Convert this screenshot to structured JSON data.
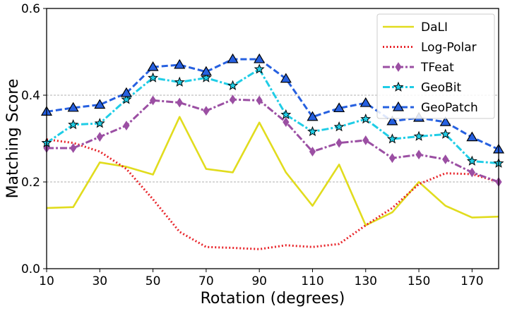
{
  "chart_data": {
    "type": "line",
    "title": "",
    "xlabel": "Rotation (degrees)",
    "ylabel": "Matching Score",
    "xlim": [
      10,
      180
    ],
    "ylim": [
      0.0,
      0.6
    ],
    "grid": "horizontal-dashed",
    "legend_position": "top-right",
    "x": [
      10,
      20,
      30,
      40,
      50,
      60,
      70,
      80,
      90,
      100,
      110,
      120,
      130,
      140,
      150,
      160,
      170,
      180
    ],
    "xticks": [
      10,
      30,
      50,
      70,
      90,
      110,
      130,
      150,
      170
    ],
    "xtick_labels": [
      "10",
      "30",
      "50",
      "70",
      "90",
      "110",
      "130",
      "150",
      "170"
    ],
    "yticks": [
      0.0,
      0.2,
      0.4,
      0.6
    ],
    "ytick_labels": [
      "0.0",
      "0.2",
      "0.4",
      "0.6"
    ],
    "series": [
      {
        "name": "DaLI",
        "color": "#e1dc1e",
        "dash": "solid",
        "marker": "none",
        "values": [
          0.14,
          0.142,
          0.245,
          0.235,
          0.217,
          0.35,
          0.23,
          0.222,
          0.337,
          0.222,
          0.145,
          0.24,
          0.1,
          0.13,
          0.2,
          0.145,
          0.118,
          0.12
        ]
      },
      {
        "name": "Log-Polar",
        "color": "#e8242a",
        "dash": "dotted",
        "marker": "none",
        "values": [
          0.298,
          0.29,
          0.27,
          0.23,
          0.16,
          0.085,
          0.05,
          0.048,
          0.045,
          0.054,
          0.05,
          0.057,
          0.1,
          0.14,
          0.195,
          0.22,
          0.218,
          0.2
        ]
      },
      {
        "name": "TFeat",
        "color": "#9b4fa3",
        "dash": "dashdot",
        "marker": "diamond",
        "values": [
          0.278,
          0.278,
          0.304,
          0.33,
          0.388,
          0.383,
          0.364,
          0.39,
          0.388,
          0.338,
          0.27,
          0.29,
          0.296,
          0.255,
          0.263,
          0.252,
          0.222,
          0.2
        ]
      },
      {
        "name": "GeoBit",
        "color": "#1fcde6",
        "dash": "dashdot",
        "marker": "star",
        "values": [
          0.29,
          0.332,
          0.335,
          0.39,
          0.44,
          0.43,
          0.44,
          0.422,
          0.46,
          0.355,
          0.316,
          0.327,
          0.345,
          0.299,
          0.305,
          0.31,
          0.248,
          0.243
        ]
      },
      {
        "name": "GeoPatch",
        "color": "#2660e0",
        "dash": "dashed",
        "marker": "triangle",
        "values": [
          0.362,
          0.371,
          0.378,
          0.405,
          0.465,
          0.47,
          0.454,
          0.483,
          0.483,
          0.438,
          0.35,
          0.37,
          0.382,
          0.34,
          0.348,
          0.338,
          0.303,
          0.275
        ]
      }
    ]
  }
}
